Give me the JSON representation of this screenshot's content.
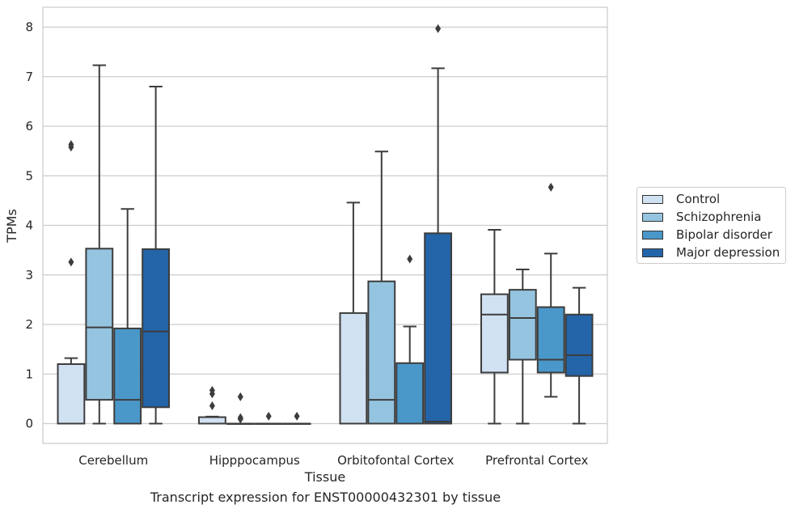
{
  "chart_data": {
    "type": "box",
    "xlabel": "Tissue",
    "ylabel": "TPMs",
    "caption": "Transcript expression for ENST00000432301 by tissue",
    "ylim": [
      -0.4,
      8.4
    ],
    "yticks": [
      0,
      1,
      2,
      3,
      4,
      5,
      6,
      7,
      8
    ],
    "grid": true,
    "legend_position": "right",
    "categories": [
      "Cerebellum",
      "Hipppocampus",
      "Orbitofontal Cortex",
      "Prefrontal Cortex"
    ],
    "series": [
      {
        "name": "Control",
        "color": "#d0e1f2",
        "boxes": [
          {
            "whislo": 0,
            "q1": 0,
            "med": 0,
            "q3": 1.2,
            "whishi": 1.32,
            "fliers": [
              3.26,
              5.58,
              5.63
            ]
          },
          {
            "whislo": 0,
            "q1": 0,
            "med": 0,
            "q3": 0.13,
            "whishi": 0.14,
            "fliers": [
              0.36,
              0.6,
              0.67
            ]
          },
          {
            "whislo": 0,
            "q1": 0,
            "med": 0,
            "q3": 2.23,
            "whishi": 4.46,
            "fliers": []
          },
          {
            "whislo": 0,
            "q1": 1.03,
            "med": 2.2,
            "q3": 2.61,
            "whishi": 3.91,
            "fliers": []
          }
        ]
      },
      {
        "name": "Schizophrenia",
        "color": "#94c4df",
        "boxes": [
          {
            "whislo": 0,
            "q1": 0.48,
            "med": 1.94,
            "q3": 3.53,
            "whishi": 7.23,
            "fliers": []
          },
          {
            "whislo": 0,
            "q1": 0,
            "med": 0,
            "q3": 0,
            "whishi": 0,
            "fliers": [
              0.09,
              0.12,
              0.54
            ]
          },
          {
            "whislo": 0,
            "q1": 0,
            "med": 0.48,
            "q3": 2.87,
            "whishi": 5.49,
            "fliers": []
          },
          {
            "whislo": 0,
            "q1": 1.29,
            "med": 2.13,
            "q3": 2.7,
            "whishi": 3.11,
            "fliers": []
          }
        ]
      },
      {
        "name": "Bipolar disorder",
        "color": "#4a98c9",
        "boxes": [
          {
            "whislo": 0,
            "q1": 0,
            "med": 0.48,
            "q3": 1.92,
            "whishi": 4.33,
            "fliers": []
          },
          {
            "whislo": 0,
            "q1": 0,
            "med": 0,
            "q3": 0,
            "whishi": 0,
            "fliers": [
              0.15
            ]
          },
          {
            "whislo": 0,
            "q1": 0,
            "med": 0,
            "q3": 1.22,
            "whishi": 1.96,
            "fliers": [
              3.32
            ]
          },
          {
            "whislo": 0.54,
            "q1": 1.03,
            "med": 1.29,
            "q3": 2.35,
            "whishi": 3.43,
            "fliers": [
              4.77
            ]
          }
        ]
      },
      {
        "name": "Major depression",
        "color": "#2464a8",
        "boxes": [
          {
            "whislo": 0,
            "q1": 0.33,
            "med": 1.86,
            "q3": 3.52,
            "whishi": 6.8,
            "fliers": []
          },
          {
            "whislo": 0,
            "q1": 0,
            "med": 0,
            "q3": 0,
            "whishi": 0,
            "fliers": [
              0.15
            ]
          },
          {
            "whislo": 0,
            "q1": 0,
            "med": 0.04,
            "q3": 3.84,
            "whishi": 7.17,
            "fliers": [
              7.97
            ]
          },
          {
            "whislo": 0,
            "q1": 0.96,
            "med": 1.38,
            "q3": 2.2,
            "whishi": 2.74,
            "fliers": []
          }
        ]
      }
    ]
  }
}
